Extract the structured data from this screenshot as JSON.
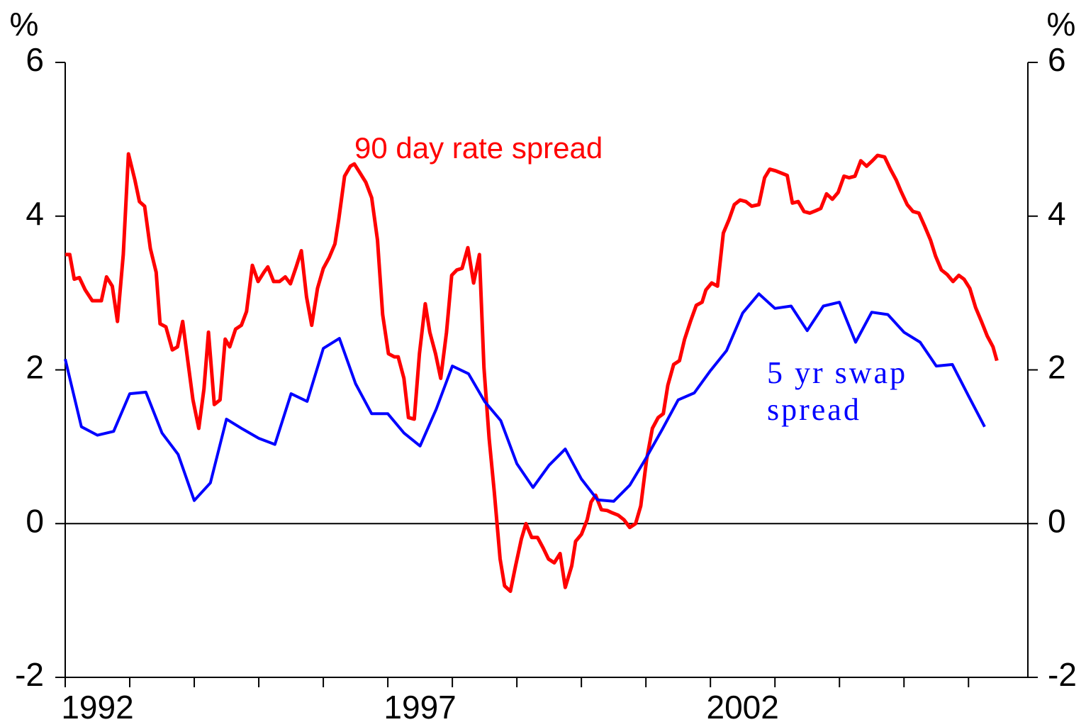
{
  "chart_data": {
    "type": "line",
    "y_unit": "%",
    "y2_unit": "%",
    "xlim": [
      1992,
      2006.92
    ],
    "xticks": [
      1992,
      1993,
      1994,
      1995,
      1996,
      1997,
      1998,
      1999,
      2000,
      2001,
      2002,
      2003,
      2004,
      2005,
      2006
    ],
    "xtick_labels": [
      {
        "value": 1992.5,
        "label": "1992"
      },
      {
        "value": 1997.5,
        "label": "1997"
      },
      {
        "value": 2002.5,
        "label": "2002"
      }
    ],
    "ylim": [
      -2,
      6
    ],
    "yticks": [
      -2,
      0,
      2,
      4,
      6
    ],
    "y2lim": [
      -2,
      6
    ],
    "y2ticks": [
      -2,
      0,
      2,
      4,
      6
    ],
    "zero_line": true,
    "grid": false,
    "annotations": [
      {
        "lines": [
          "90 day rate spread"
        ],
        "color": "#ff0000"
      },
      {
        "lines": [
          "5 yr swap",
          "spread"
        ],
        "color": "#0000ff"
      }
    ],
    "series": [
      {
        "name": "90 day rate spread",
        "color": "#ff0000",
        "x": [
          1992.0,
          1992.07,
          1992.14,
          1992.22,
          1992.31,
          1992.42,
          1992.48,
          1992.56,
          1992.64,
          1992.73,
          1992.81,
          1992.9,
          1992.98,
          1993.08,
          1993.15,
          1993.23,
          1993.32,
          1993.41,
          1993.47,
          1993.56,
          1993.66,
          1993.74,
          1993.82,
          1993.9,
          1993.98,
          1994.07,
          1994.15,
          1994.22,
          1994.31,
          1994.4,
          1994.48,
          1994.55,
          1994.64,
          1994.73,
          1994.81,
          1994.9,
          1994.99,
          1995.08,
          1995.14,
          1995.23,
          1995.32,
          1995.41,
          1995.49,
          1995.58,
          1995.66,
          1995.74,
          1995.82,
          1995.91,
          1996.0,
          1996.09,
          1996.18,
          1996.24,
          1996.33,
          1996.42,
          1996.48,
          1996.57,
          1996.66,
          1996.75,
          1996.84,
          1996.92,
          1997.01,
          1997.1,
          1997.16,
          1997.25,
          1997.32,
          1997.41,
          1997.49,
          1997.58,
          1997.65,
          1997.74,
          1997.82,
          1997.91,
          1997.99,
          1998.07,
          1998.15,
          1998.24,
          1998.33,
          1998.42,
          1998.49,
          1998.57,
          1998.65,
          1998.74,
          1998.81,
          1998.9,
          1998.98,
          1999.07,
          1999.14,
          1999.23,
          1999.32,
          1999.41,
          1999.49,
          1999.58,
          1999.67,
          1999.75,
          1999.85,
          1999.91,
          2000.0,
          2000.09,
          2000.15,
          2000.22,
          2000.31,
          2000.4,
          2000.48,
          2000.57,
          2000.66,
          2000.75,
          2000.84,
          2000.92,
          2001.01,
          2001.1,
          2001.19,
          2001.27,
          2001.34,
          2001.43,
          2001.52,
          2001.6,
          2001.69,
          2001.78,
          2001.87,
          2001.93,
          2002.02,
          2002.11,
          2002.2,
          2002.29,
          2002.37,
          2002.46,
          2002.55,
          2002.64,
          2002.75,
          2002.84,
          2002.92,
          2003.01,
          2003.1,
          2003.19,
          2003.27,
          2003.36,
          2003.45,
          2003.54,
          2003.63,
          2003.71,
          2003.8,
          2003.89,
          2003.98,
          2004.07,
          2004.15,
          2004.24,
          2004.33,
          2004.42,
          2004.51,
          2004.59,
          2004.7,
          2004.79,
          2004.88,
          2004.95,
          2005.05,
          2005.14,
          2005.23,
          2005.32,
          2005.41,
          2005.49,
          2005.58,
          2005.67,
          2005.76,
          2005.85,
          2005.93,
          2006.02,
          2006.11,
          2006.2,
          2006.29,
          2006.38,
          2006.44
        ],
        "values": [
          3.5,
          3.5,
          3.18,
          3.2,
          3.04,
          2.9,
          2.9,
          2.9,
          3.21,
          3.09,
          2.63,
          3.5,
          4.81,
          4.47,
          4.19,
          4.13,
          3.58,
          3.27,
          2.6,
          2.56,
          2.26,
          2.3,
          2.63,
          2.12,
          1.61,
          1.24,
          1.75,
          2.49,
          1.55,
          1.61,
          2.4,
          2.3,
          2.53,
          2.58,
          2.76,
          3.36,
          3.15,
          3.27,
          3.34,
          3.15,
          3.15,
          3.21,
          3.12,
          3.34,
          3.55,
          2.95,
          2.58,
          3.06,
          3.32,
          3.46,
          3.64,
          3.96,
          4.52,
          4.65,
          4.68,
          4.56,
          4.44,
          4.24,
          3.69,
          2.72,
          2.21,
          2.17,
          2.17,
          1.89,
          1.38,
          1.36,
          2.21,
          2.86,
          2.49,
          2.21,
          1.89,
          2.49,
          3.23,
          3.3,
          3.32,
          3.59,
          3.13,
          3.5,
          2.03,
          1.11,
          0.41,
          -0.46,
          -0.81,
          -0.88,
          -0.55,
          -0.2,
          0.0,
          -0.18,
          -0.18,
          -0.32,
          -0.46,
          -0.51,
          -0.39,
          -0.83,
          -0.55,
          -0.23,
          -0.14,
          0.05,
          0.28,
          0.37,
          0.18,
          0.17,
          0.14,
          0.11,
          0.05,
          -0.05,
          0.0,
          0.23,
          0.83,
          1.24,
          1.38,
          1.43,
          1.8,
          2.07,
          2.12,
          2.4,
          2.63,
          2.84,
          2.88,
          3.04,
          3.13,
          3.09,
          3.78,
          3.96,
          4.15,
          4.21,
          4.19,
          4.13,
          4.15,
          4.5,
          4.61,
          4.59,
          4.56,
          4.53,
          4.17,
          4.19,
          4.06,
          4.04,
          4.07,
          4.1,
          4.29,
          4.22,
          4.31,
          4.52,
          4.5,
          4.52,
          4.72,
          4.65,
          4.72,
          4.79,
          4.77,
          4.61,
          4.47,
          4.33,
          4.15,
          4.06,
          4.04,
          3.87,
          3.69,
          3.48,
          3.3,
          3.24,
          3.15,
          3.23,
          3.18,
          3.06,
          2.81,
          2.63,
          2.44,
          2.3,
          2.12
        ]
      },
      {
        "name": "5 yr swap spread",
        "color": "#0000ff",
        "x": [
          1992,
          1992.25,
          1992.5,
          1992.75,
          1993,
          1993.25,
          1993.5,
          1993.75,
          1994,
          1994.25,
          1994.5,
          1994.75,
          1995,
          1995.25,
          1995.5,
          1995.75,
          1996,
          1996.25,
          1996.5,
          1996.75,
          1997,
          1997.25,
          1997.5,
          1997.75,
          1998,
          1998.25,
          1998.5,
          1998.75,
          1999,
          1999.25,
          1999.5,
          1999.75,
          2000,
          2000.25,
          2000.5,
          2000.75,
          2001,
          2001.25,
          2001.5,
          2001.75,
          2002,
          2002.25,
          2002.5,
          2002.75,
          2003,
          2003.25,
          2003.5,
          2003.75,
          2004,
          2004.25,
          2004.5,
          2004.75,
          2005,
          2005.25,
          2005.5,
          2005.75,
          2006,
          2006.25
        ],
        "values": [
          2.14,
          1.26,
          1.15,
          1.2,
          1.69,
          1.71,
          1.18,
          0.9,
          0.3,
          0.53,
          1.36,
          1.23,
          1.11,
          1.03,
          1.69,
          1.59,
          2.28,
          2.41,
          1.82,
          1.43,
          1.43,
          1.18,
          1.01,
          1.49,
          2.05,
          1.95,
          1.59,
          1.34,
          0.78,
          0.47,
          0.76,
          0.97,
          0.58,
          0.31,
          0.29,
          0.5,
          0.85,
          1.22,
          1.61,
          1.7,
          1.99,
          2.25,
          2.74,
          2.99,
          2.8,
          2.83,
          2.51,
          2.83,
          2.88,
          2.36,
          2.75,
          2.72,
          2.49,
          2.36,
          2.05,
          2.07,
          1.66,
          1.26
        ]
      }
    ]
  }
}
